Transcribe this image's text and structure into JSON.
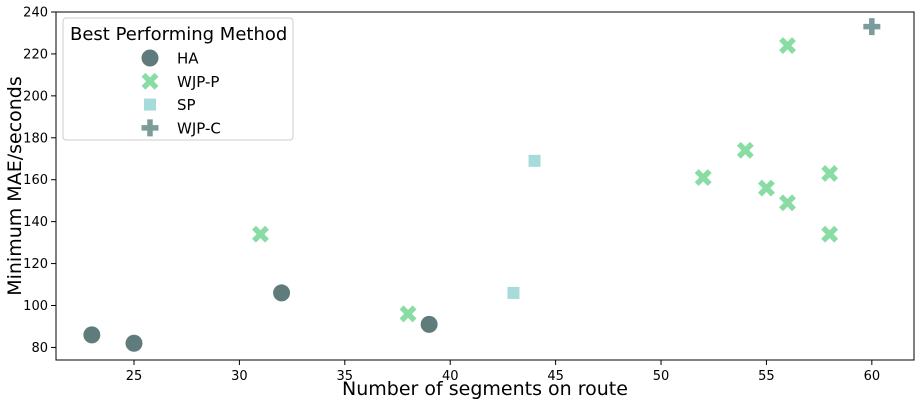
{
  "chart_data": {
    "type": "scatter",
    "title": "",
    "xlabel": "Number of segments on route",
    "ylabel": "Minimum MAE/seconds",
    "xlim": [
      21.3,
      62
    ],
    "ylim": [
      74,
      240
    ],
    "xticks": [
      25,
      30,
      35,
      40,
      45,
      50,
      55,
      60
    ],
    "yticks": [
      80,
      100,
      120,
      140,
      160,
      180,
      200,
      220,
      240
    ],
    "grid": false,
    "legend": {
      "title": "Best Performing Method",
      "placement": "top-left"
    },
    "series": [
      {
        "name": "HA",
        "marker": "circle",
        "color": "#607b7b",
        "points": [
          [
            23,
            86
          ],
          [
            25,
            82
          ],
          [
            32,
            106
          ],
          [
            39,
            91
          ]
        ]
      },
      {
        "name": "WJP-P",
        "marker": "x",
        "color": "#89dca4",
        "points": [
          [
            31,
            134
          ],
          [
            38,
            96
          ],
          [
            52,
            161
          ],
          [
            54,
            174
          ],
          [
            55,
            156
          ],
          [
            56,
            149
          ],
          [
            56,
            224
          ],
          [
            58,
            163
          ],
          [
            58,
            134
          ]
        ]
      },
      {
        "name": "SP",
        "marker": "square",
        "color": "#a6dbd9",
        "points": [
          [
            43,
            106
          ],
          [
            44,
            169
          ]
        ]
      },
      {
        "name": "WJP-C",
        "marker": "plus",
        "color": "#7a9c9b",
        "points": [
          [
            60,
            233
          ]
        ]
      }
    ]
  }
}
